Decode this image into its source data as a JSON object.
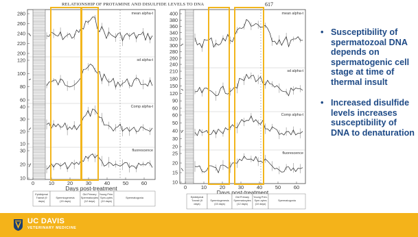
{
  "header": {
    "running_title": "RELATIONSHIP OF PROTAMINE AND DISULFIDE LEVELS TO DNA",
    "page_number": "617"
  },
  "left_panel": {
    "panels": [
      {
        "label": "mean alpha-t",
        "ticks": [
          "280",
          "260",
          "240",
          "220",
          "200"
        ]
      },
      {
        "label": "sd alpha-t",
        "ticks": [
          "120",
          "100",
          "80",
          "60"
        ]
      },
      {
        "label": "Comp alpha-t",
        "ticks": [
          "40",
          "30",
          "20",
          "10"
        ]
      },
      {
        "label": "fluorescence",
        "ticks": [
          "30",
          "20",
          "10"
        ]
      }
    ],
    "x_ticks": [
      "0",
      "10",
      "20",
      "30",
      "40",
      "50",
      "60"
    ],
    "x_label": "Days post-treatment",
    "stages": [
      "Epididymal Transit (9 days)",
      "Spermiogenesis (15 days)",
      "Gid Primary Spermatocytes (12 days)",
      "Young Prim. Spm-cytes (10 days)",
      "Spermatogonia"
    ]
  },
  "right_panel": {
    "panels": [
      {
        "label": "mean alpha-t",
        "ticks": [
          "400",
          "380",
          "360",
          "340",
          "320",
          "300",
          "280",
          "260",
          "240"
        ]
      },
      {
        "label": "sd alpha-t",
        "ticks": [
          "210",
          "180",
          "150",
          "120",
          "90",
          "60"
        ]
      },
      {
        "label": "Comp alpha-t",
        "ticks": [
          "60",
          "50",
          "40",
          "30",
          "20"
        ]
      },
      {
        "label": "fluorescence",
        "ticks": [
          "25",
          "20",
          "15",
          "10"
        ]
      }
    ],
    "x_ticks": [
      "0",
      "10",
      "20",
      "30",
      "40",
      "50",
      "60"
    ],
    "x_label": "Days post-treatment",
    "stages": [
      "Epididymal Transit (9 days)",
      "Spermiogenesis (15 days)",
      "Gid Primary Spermatocytes (12 days)",
      "Young Prim. Spm-cytes (10 days)",
      "Spermatogonia"
    ]
  },
  "bullets": [
    "Susceptibility of spermatozoal DNA depends on spermatogenic cell stage at time of thermal insult",
    "Increased disulfide levels increases susceptibility of DNA to denaturation"
  ],
  "footer": {
    "logo_main": "UC DAVIS",
    "logo_sub": "VETERINARY MEDICINE"
  },
  "colors": {
    "highlight": "#f2b51c",
    "bullet_text": "#1e4a86",
    "footer_bg": "#f4b31a"
  }
}
